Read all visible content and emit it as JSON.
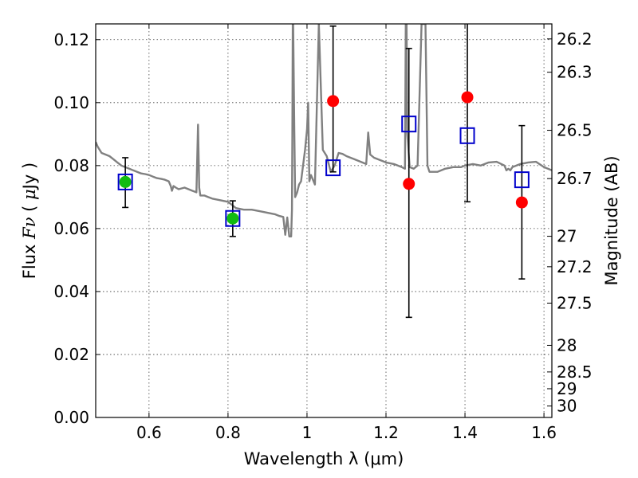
{
  "chart_data": {
    "type": "scatter",
    "xlabel": "Wavelength  λ (μm)",
    "ylabel_left": {
      "prefix": "Flux ",
      "symbol": "Fν",
      "open": " ( ",
      "mu": "μ",
      "unit": "Jy )"
    },
    "ylabel_right": "Magnitude (AB)",
    "xlim": [
      0.465,
      1.62
    ],
    "ylim": [
      0.0,
      0.125
    ],
    "grid": true,
    "x_ticks": [
      {
        "value": 0.6,
        "label": "0.6"
      },
      {
        "value": 0.8,
        "label": "0.8"
      },
      {
        "value": 1.0,
        "label": "1"
      },
      {
        "value": 1.2,
        "label": "1.2"
      },
      {
        "value": 1.4,
        "label": "1.4"
      },
      {
        "value": 1.6,
        "label": "1.6"
      }
    ],
    "y_ticks": [
      {
        "value": 0.0,
        "label": "0.00"
      },
      {
        "value": 0.02,
        "label": "0.02"
      },
      {
        "value": 0.04,
        "label": "0.04"
      },
      {
        "value": 0.06,
        "label": "0.06"
      },
      {
        "value": 0.08,
        "label": "0.08"
      },
      {
        "value": 0.1,
        "label": "0.10"
      },
      {
        "value": 0.12,
        "label": "0.12"
      }
    ],
    "mag_ticks": [
      {
        "value": 26.2,
        "label": "26.2"
      },
      {
        "value": 26.3,
        "label": "26.3"
      },
      {
        "value": 26.5,
        "label": "26.5"
      },
      {
        "value": 26.7,
        "label": "26.7"
      },
      {
        "value": 27.0,
        "label": "27"
      },
      {
        "value": 27.2,
        "label": "27.2"
      },
      {
        "value": 27.5,
        "label": "27.5"
      },
      {
        "value": 28.0,
        "label": "28"
      },
      {
        "value": 28.5,
        "label": "28.5"
      },
      {
        "value": 29.0,
        "label": "29"
      },
      {
        "value": 30.0,
        "label": "30"
      }
    ],
    "model_spectrum": {
      "color": "#808080",
      "x": [
        0.465,
        0.47,
        0.48,
        0.49,
        0.5,
        0.51,
        0.52,
        0.53,
        0.54,
        0.55,
        0.56,
        0.57,
        0.58,
        0.59,
        0.6,
        0.61,
        0.62,
        0.63,
        0.64,
        0.65,
        0.655,
        0.658,
        0.662,
        0.668,
        0.675,
        0.69,
        0.7,
        0.71,
        0.72,
        0.724,
        0.727,
        0.73,
        0.74,
        0.75,
        0.76,
        0.78,
        0.8,
        0.81,
        0.82,
        0.84,
        0.86,
        0.88,
        0.9,
        0.92,
        0.93,
        0.94,
        0.945,
        0.95,
        0.955,
        0.96,
        0.962,
        0.963,
        0.964,
        0.965,
        0.968,
        0.97,
        0.975,
        0.98,
        0.985,
        0.99,
        0.995,
        1.0,
        1.003,
        1.006,
        1.01,
        1.02,
        1.03,
        1.04,
        1.05,
        1.06,
        1.07,
        1.08,
        1.09,
        1.1,
        1.12,
        1.14,
        1.15,
        1.155,
        1.16,
        1.17,
        1.19,
        1.2,
        1.22,
        1.24,
        1.248,
        1.25,
        1.252,
        1.254,
        1.26,
        1.27,
        1.28,
        1.29,
        1.295,
        1.3,
        1.305,
        1.31,
        1.33,
        1.35,
        1.37,
        1.39,
        1.4,
        1.42,
        1.44,
        1.46,
        1.48,
        1.5,
        1.505,
        1.51,
        1.515,
        1.52,
        1.54,
        1.56,
        1.58,
        1.6,
        1.62
      ],
      "y": [
        0.0875,
        0.086,
        0.084,
        0.0835,
        0.083,
        0.082,
        0.081,
        0.08,
        0.0795,
        0.079,
        0.0785,
        0.078,
        0.0775,
        0.0773,
        0.077,
        0.0765,
        0.076,
        0.0758,
        0.0755,
        0.075,
        0.0735,
        0.072,
        0.0735,
        0.073,
        0.0725,
        0.073,
        0.0725,
        0.072,
        0.0715,
        0.093,
        0.073,
        0.0705,
        0.0705,
        0.07,
        0.0695,
        0.069,
        0.0685,
        0.0675,
        0.0665,
        0.066,
        0.066,
        0.0655,
        0.065,
        0.0645,
        0.064,
        0.0637,
        0.058,
        0.0635,
        0.0575,
        0.0575,
        0.066,
        0.09,
        0.125,
        0.125,
        0.09,
        0.07,
        0.0715,
        0.074,
        0.075,
        0.08,
        0.085,
        0.0915,
        0.1,
        0.075,
        0.077,
        0.074,
        0.125,
        0.085,
        0.083,
        0.078,
        0.08,
        0.084,
        0.0837,
        0.083,
        0.082,
        0.081,
        0.0805,
        0.0905,
        0.0835,
        0.0825,
        0.0815,
        0.081,
        0.0805,
        0.0795,
        0.079,
        0.125,
        0.125,
        0.09,
        0.0795,
        0.079,
        0.08,
        0.125,
        0.125,
        0.125,
        0.08,
        0.078,
        0.078,
        0.079,
        0.0795,
        0.0795,
        0.08,
        0.0805,
        0.08,
        0.081,
        0.0812,
        0.08,
        0.0785,
        0.079,
        0.0785,
        0.0795,
        0.0805,
        0.081,
        0.0812,
        0.0795,
        0.0785
      ]
    },
    "green_points": {
      "color": "#11bb11",
      "points": [
        {
          "x": 0.54,
          "y": 0.0748
        },
        {
          "x": 0.812,
          "y": 0.0632
        }
      ]
    },
    "red_points": {
      "color": "#ff0000",
      "points": [
        {
          "x": 1.066,
          "y": 0.1005
        },
        {
          "x": 1.258,
          "y": 0.0742
        },
        {
          "x": 1.406,
          "y": 0.1017
        },
        {
          "x": 1.544,
          "y": 0.0683
        }
      ]
    },
    "blue_squares": {
      "color": "#0000cc",
      "points": [
        {
          "x": 0.54,
          "y": 0.0748
        },
        {
          "x": 0.812,
          "y": 0.0632
        },
        {
          "x": 1.066,
          "y": 0.0793
        },
        {
          "x": 1.258,
          "y": 0.0932
        },
        {
          "x": 1.406,
          "y": 0.0895
        },
        {
          "x": 1.544,
          "y": 0.0755
        }
      ]
    },
    "error_bars": [
      {
        "x": 0.54,
        "low": 0.0667,
        "high": 0.0825
      },
      {
        "x": 0.812,
        "low": 0.0575,
        "high": 0.0688
      },
      {
        "x": 1.066,
        "low": 0.078,
        "high": 0.1243
      },
      {
        "x": 1.258,
        "low": 0.0318,
        "high": 0.1172
      },
      {
        "x": 1.406,
        "low": 0.0685,
        "high": 0.13
      },
      {
        "x": 1.544,
        "low": 0.044,
        "high": 0.0927
      }
    ]
  }
}
